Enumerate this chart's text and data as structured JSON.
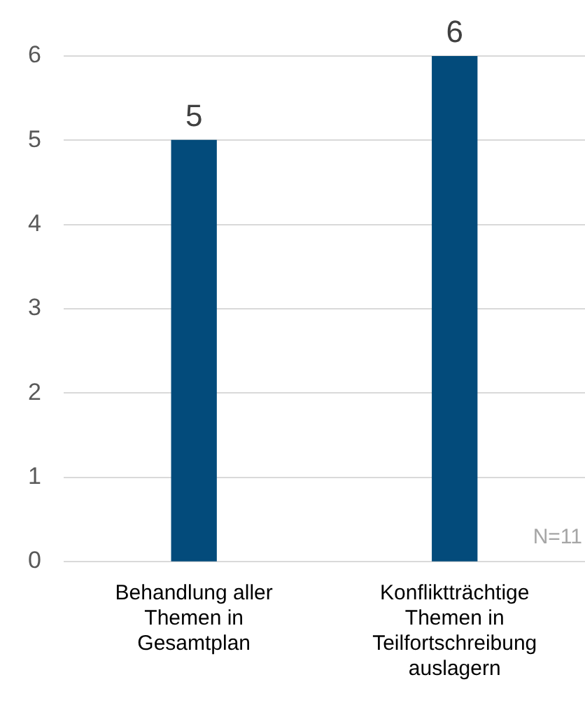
{
  "chart_data": {
    "type": "bar",
    "categories": [
      "Behandlung aller Themen in Gesamtplan",
      "Konfliktträchtige Themen in Teilfortschreibung auslagern"
    ],
    "values": [
      5,
      6
    ],
    "color": "#034b7b",
    "ylim": [
      0,
      6
    ],
    "yticks": [
      0,
      1,
      2,
      3,
      4,
      5,
      6
    ],
    "grid": "y",
    "data_labels": true,
    "legend": false,
    "annotations": [
      "N=11"
    ]
  }
}
